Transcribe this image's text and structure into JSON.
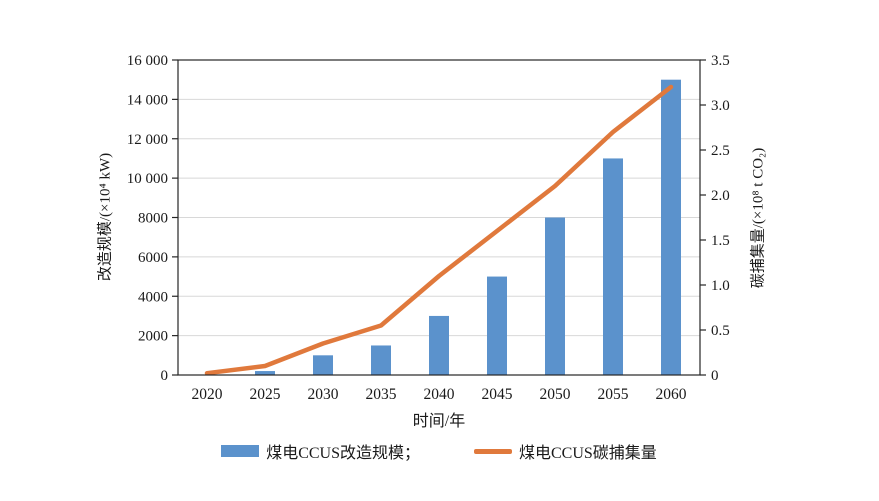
{
  "chart_data": {
    "type": "bar+line",
    "dual_axis": true,
    "categories": [
      "2020",
      "2025",
      "2030",
      "2035",
      "2040",
      "2045",
      "2050",
      "2055",
      "2060"
    ],
    "series": [
      {
        "name": "煤电CCUS改造规模",
        "type": "bar",
        "axis": "left",
        "color": "#5B92CC",
        "values": [
          0,
          200,
          1000,
          1500,
          3000,
          5000,
          8000,
          11000,
          15000
        ]
      },
      {
        "name": "煤电CCUS碳捕集量",
        "type": "line",
        "axis": "right",
        "color": "#E0793C",
        "values": [
          0.02,
          0.1,
          0.35,
          0.55,
          1.1,
          1.6,
          2.1,
          2.7,
          3.2
        ]
      }
    ],
    "xlabel": "时间/年",
    "left_axis": {
      "title": "改造规模/(×10⁴ kW)",
      "min": 0,
      "max": 16000,
      "step": 2000,
      "tick_labels": [
        "0",
        "2000",
        "4000",
        "6000",
        "8000",
        "10 000",
        "12 000",
        "14 000",
        "16 000"
      ]
    },
    "right_axis": {
      "title": "碳捕集量/(×10⁸ t CO₂)",
      "min": 0,
      "max": 3.5,
      "step": 0.5,
      "tick_labels": [
        "0",
        "0.5",
        "1.0",
        "1.5",
        "2.0",
        "2.5",
        "3.0",
        "3.5"
      ]
    },
    "grid": "horizontal",
    "legend_position": "bottom",
    "colors": {
      "bar": "#5B92CC",
      "line": "#E0793C",
      "grid": "#D8D8D8",
      "spine": "#262626",
      "text": "#1A1A1A"
    }
  },
  "axes_titles": {
    "left": "改造规模/(×10⁴ kW)",
    "right": "碳捕集量/(×10⁸ t CO₂)",
    "x": "时间/年"
  },
  "legend": {
    "items": [
      {
        "label": "煤电CCUS改造规模；",
        "type": "bar",
        "color": "#5B92CC"
      },
      {
        "label": "煤电CCUS碳捕集量",
        "type": "line",
        "color": "#E0793C"
      }
    ]
  }
}
